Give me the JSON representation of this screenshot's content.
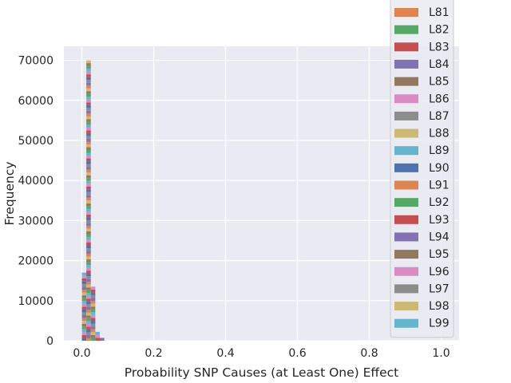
{
  "chart_data": {
    "type": "histogram",
    "xlabel": "Probability SNP Causes (at Least One) Effect",
    "ylabel": "Frequency",
    "xlim": [
      -0.05,
      1.05
    ],
    "ylim": [
      0,
      73500
    ],
    "xticks": [
      "0.0",
      "0.2",
      "0.4",
      "0.6",
      "0.8",
      "1.0"
    ],
    "xtick_values": [
      0.0,
      0.2,
      0.4,
      0.6,
      0.8,
      1.0
    ],
    "yticks": [
      "0",
      "10000",
      "20000",
      "30000",
      "40000",
      "50000",
      "60000",
      "70000"
    ],
    "ytick_values": [
      0,
      10000,
      20000,
      30000,
      40000,
      50000,
      60000,
      70000
    ],
    "grid": true,
    "stacked": true,
    "bin_edges": [
      0.0,
      0.0125,
      0.025,
      0.0375,
      0.05,
      0.0625
    ],
    "bin_totals": [
      17000,
      70000,
      13500,
      2200,
      700
    ],
    "legend_placement": "right, clipped at top",
    "legend": [
      {
        "name": "L81",
        "color": "#dd8452"
      },
      {
        "name": "L82",
        "color": "#55a868"
      },
      {
        "name": "L83",
        "color": "#c44e52"
      },
      {
        "name": "L84",
        "color": "#8172b3"
      },
      {
        "name": "L85",
        "color": "#937860"
      },
      {
        "name": "L86",
        "color": "#da8bc3"
      },
      {
        "name": "L87",
        "color": "#8c8c8c"
      },
      {
        "name": "L88",
        "color": "#ccb974"
      },
      {
        "name": "L89",
        "color": "#64b5cd"
      },
      {
        "name": "L90",
        "color": "#4c72b0"
      },
      {
        "name": "L91",
        "color": "#dd8452"
      },
      {
        "name": "L92",
        "color": "#55a868"
      },
      {
        "name": "L93",
        "color": "#c44e52"
      },
      {
        "name": "L94",
        "color": "#8172b3"
      },
      {
        "name": "L95",
        "color": "#937860"
      },
      {
        "name": "L96",
        "color": "#da8bc3"
      },
      {
        "name": "L97",
        "color": "#8c8c8c"
      },
      {
        "name": "L98",
        "color": "#ccb974"
      },
      {
        "name": "L99",
        "color": "#64b5cd"
      }
    ],
    "palette": [
      "#4c72b0",
      "#dd8452",
      "#55a868",
      "#c44e52",
      "#8172b3",
      "#937860",
      "#da8bc3",
      "#8c8c8c",
      "#ccb974",
      "#64b5cd"
    ],
    "background": "#eaeaf2",
    "grid_color": "#ffffff"
  }
}
